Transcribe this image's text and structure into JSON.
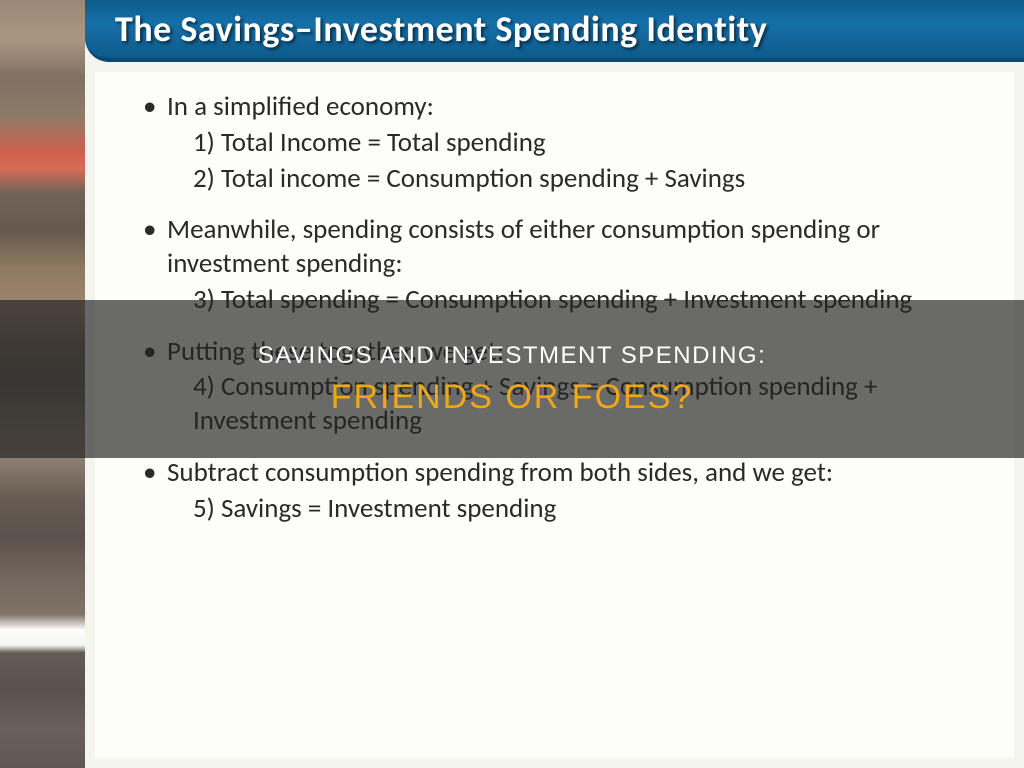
{
  "title": "The Savings–Investment Spending Identity",
  "bullets": [
    {
      "main": "In a simplified economy:",
      "subs": [
        "1) Total Income = Total spending",
        "2) Total income = Consumption spending + Savings"
      ]
    },
    {
      "main": "Meanwhile, spending consists of either consumption spending or investment spending:",
      "subs": [
        "3) Total spending = Consumption spending + Investment spending"
      ]
    },
    {
      "main": "Putting these together, we get:",
      "subs": [
        "4) Consumption spending + Savings = Consumption spending + Investment spending"
      ]
    },
    {
      "main": "Subtract consumption spending from both sides, and we get:",
      "subs": [
        "5) Savings = Investment spending"
      ]
    }
  ],
  "overlay": {
    "line1": "SAVINGS AND INVESTMENT SPENDING:",
    "line2": "FRIENDS OR FOES?"
  }
}
